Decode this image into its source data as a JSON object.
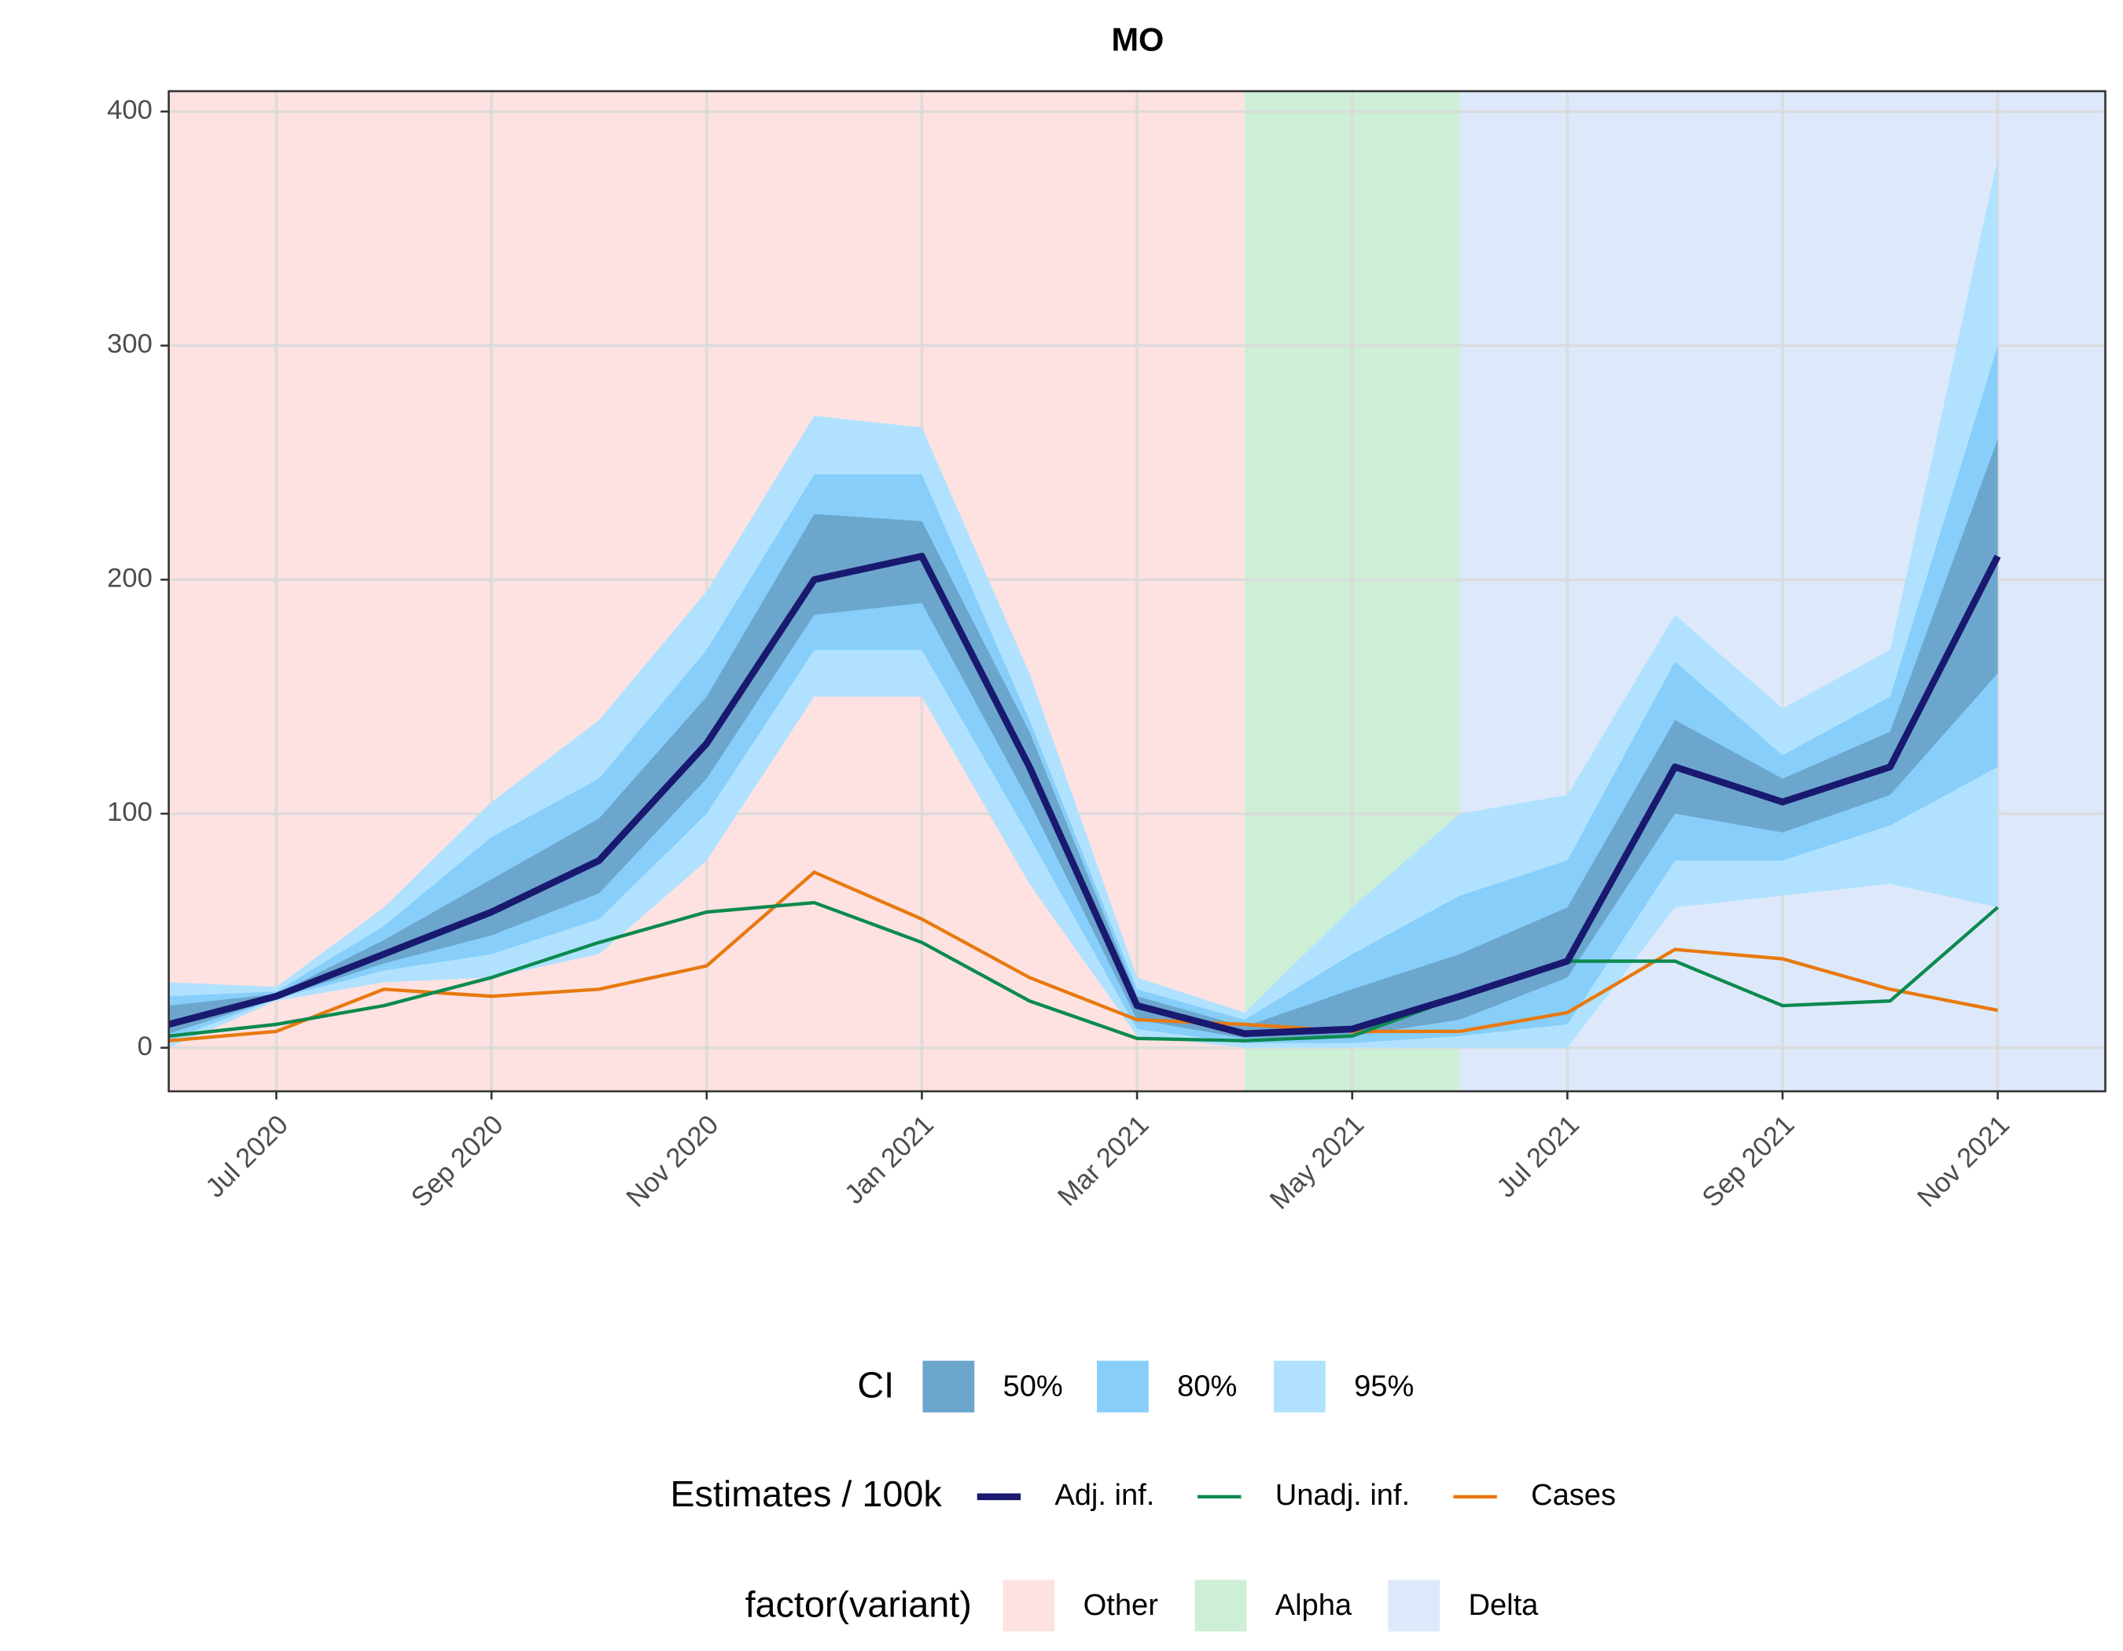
{
  "chart_data": {
    "type": "line",
    "title": "MO",
    "x": [
      "2020-06",
      "2020-07",
      "2020-08",
      "2020-09",
      "2020-10",
      "2020-11",
      "2020-12",
      "2021-01",
      "2021-02",
      "2021-03",
      "2021-04",
      "2021-05",
      "2021-06",
      "2021-07",
      "2021-08",
      "2021-09",
      "2021-10",
      "2021-11"
    ],
    "xlim": [
      "2020-06",
      "2021-12"
    ],
    "xticks": [
      {
        "value": "2020-07",
        "label": "Jul 2020"
      },
      {
        "value": "2020-09",
        "label": "Sep 2020"
      },
      {
        "value": "2020-11",
        "label": "Nov 2020"
      },
      {
        "value": "2021-01",
        "label": "Jan 2021"
      },
      {
        "value": "2021-03",
        "label": "Mar 2021"
      },
      {
        "value": "2021-05",
        "label": "May 2021"
      },
      {
        "value": "2021-07",
        "label": "Jul 2021"
      },
      {
        "value": "2021-09",
        "label": "Sep 2021"
      },
      {
        "value": "2021-11",
        "label": "Nov 2021"
      }
    ],
    "ylim": [
      -18.6,
      408.7
    ],
    "yticks": [
      0,
      100,
      200,
      300,
      400
    ],
    "grid": true,
    "bands_title": "CI",
    "bands": [
      {
        "name": "95%",
        "color": "#B0E2FF",
        "lower": [
          0,
          20,
          28,
          30,
          40,
          80,
          150,
          150,
          70,
          5,
          0,
          0,
          0,
          0,
          60,
          65,
          70,
          60
        ],
        "upper": [
          28,
          26,
          60,
          105,
          140,
          195,
          270,
          265,
          160,
          30,
          15,
          60,
          100,
          108,
          185,
          145,
          170,
          380
        ]
      },
      {
        "name": "80%",
        "color": "#87CEFA",
        "lower": [
          3,
          21,
          33,
          40,
          55,
          100,
          170,
          170,
          90,
          8,
          2,
          2,
          5,
          10,
          80,
          80,
          95,
          120
        ],
        "upper": [
          22,
          24,
          52,
          90,
          115,
          170,
          245,
          245,
          140,
          25,
          12,
          40,
          65,
          80,
          165,
          125,
          150,
          300
        ]
      },
      {
        "name": "50%",
        "color": "#6CA6CD",
        "lower": [
          6,
          21,
          36,
          48,
          66,
          115,
          185,
          190,
          105,
          12,
          4,
          5,
          12,
          30,
          100,
          92,
          108,
          160
        ],
        "upper": [
          18,
          23,
          46,
          72,
          98,
          150,
          228,
          225,
          135,
          22,
          9,
          25,
          40,
          60,
          140,
          115,
          135,
          260
        ]
      }
    ],
    "series_title": "Estimates / 100k",
    "series": [
      {
        "name": "Adj. inf.",
        "color": "#191970",
        "values": [
          10,
          22,
          40,
          58,
          80,
          130,
          200,
          210,
          120,
          18,
          6,
          8,
          22,
          37,
          120,
          105,
          120,
          210
        ]
      },
      {
        "name": "Unadj. inf.",
        "color": "#0C8A4E",
        "values": [
          5,
          10,
          18,
          30,
          45,
          58,
          62,
          45,
          20,
          4,
          3,
          5,
          22,
          37,
          37,
          18,
          20,
          60
        ]
      },
      {
        "name": "Cases",
        "color": "#E8790E",
        "values": [
          3,
          7,
          25,
          22,
          25,
          35,
          75,
          55,
          30,
          12,
          10,
          7,
          7,
          15,
          42,
          38,
          25,
          16
        ]
      }
    ],
    "regions_title": "factor(variant)",
    "regions": [
      {
        "name": "Other",
        "color": "#FDE2E1",
        "start": "2020-06",
        "end": "2021-04"
      },
      {
        "name": "Alpha",
        "color": "#CDEFD6",
        "start": "2021-04",
        "end": "2021-06"
      },
      {
        "name": "Delta",
        "color": "#DDE9FB",
        "start": "2021-06",
        "end": "2021-12"
      }
    ]
  }
}
